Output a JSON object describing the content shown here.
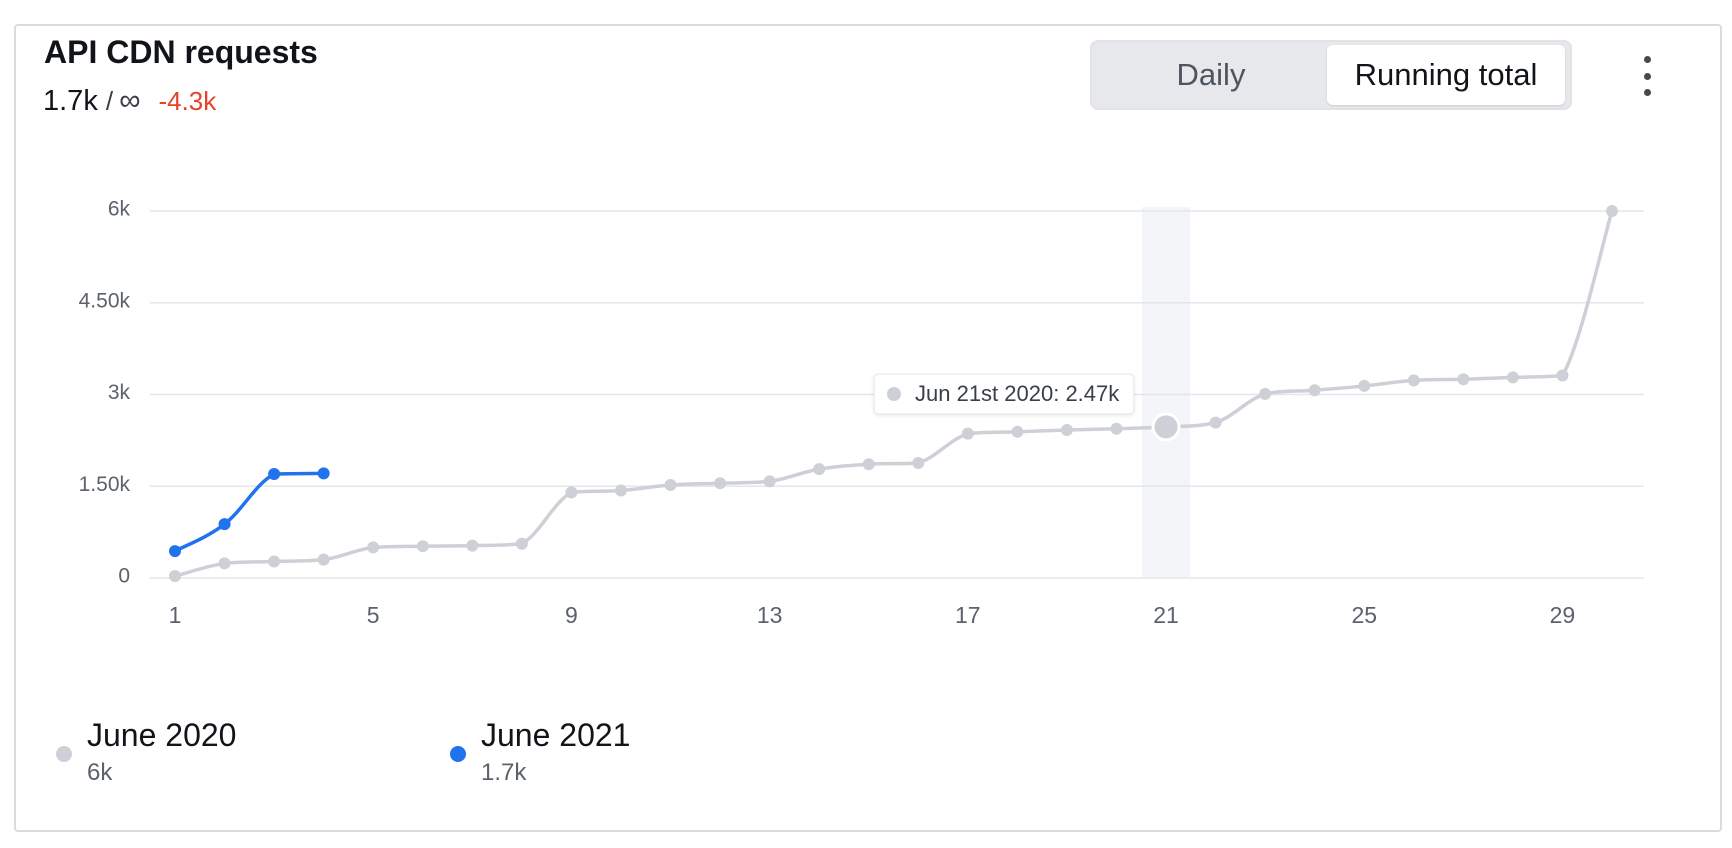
{
  "card": {
    "title": "API CDN requests",
    "current": "1.7k",
    "separator": "/",
    "limit": "∞",
    "delta": "-4.3k"
  },
  "toggle": {
    "daily_label": "Daily",
    "running_label": "Running total",
    "selected": "Running total"
  },
  "menu": {
    "icon": "more-vertical-icon"
  },
  "tooltip": {
    "text": "Jun 21st 2020: 2.47k"
  },
  "legend": [
    {
      "name": "June 2020",
      "value": "6k",
      "color": "#cdd0d6"
    },
    {
      "name": "June 2021",
      "value": "1.7k",
      "color": "#2173ed"
    }
  ],
  "colors": {
    "accent": "#2173ed",
    "baseline": "#cdd0d6",
    "negative": "#e5432a",
    "highlight": "#f3f5f8"
  },
  "chart_data": {
    "type": "line",
    "x": [
      1,
      2,
      3,
      4,
      5,
      6,
      7,
      8,
      9,
      10,
      11,
      12,
      13,
      14,
      15,
      16,
      17,
      18,
      19,
      20,
      21,
      22,
      23,
      24,
      25,
      26,
      27,
      28,
      29,
      30
    ],
    "xticks": [
      1,
      5,
      9,
      13,
      17,
      21,
      25,
      29
    ],
    "yticks": [
      0,
      1500,
      3000,
      4500,
      6000
    ],
    "ytick_labels": [
      "0",
      "1.50k",
      "3k",
      "4.50k",
      "6k"
    ],
    "ylim": [
      0,
      6000
    ],
    "xlim": [
      1,
      30
    ],
    "grid": true,
    "highlight_x": 21,
    "series": [
      {
        "name": "June 2020",
        "color": "#cdd0d6",
        "x": [
          1,
          2,
          3,
          4,
          5,
          6,
          7,
          8,
          9,
          10,
          11,
          12,
          13,
          14,
          15,
          16,
          17,
          18,
          19,
          20,
          21,
          22,
          23,
          24,
          25,
          26,
          27,
          28,
          29,
          30
        ],
        "values": [
          30,
          240,
          270,
          300,
          500,
          520,
          530,
          560,
          1400,
          1430,
          1520,
          1550,
          1580,
          1780,
          1860,
          1880,
          2360,
          2390,
          2420,
          2440,
          2470,
          2540,
          3010,
          3070,
          3140,
          3230,
          3250,
          3280,
          3310,
          6000
        ]
      },
      {
        "name": "June 2021",
        "color": "#2173ed",
        "x": [
          1,
          2,
          3,
          4
        ],
        "values": [
          440,
          880,
          1700,
          1710
        ]
      }
    ]
  }
}
